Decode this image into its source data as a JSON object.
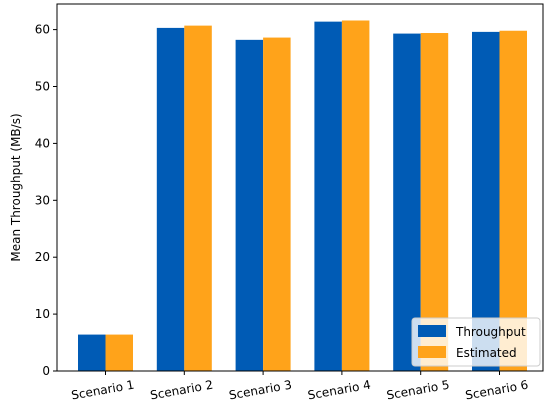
{
  "chart_data": {
    "type": "bar",
    "categories": [
      "Scenario 1",
      "Scenario 2",
      "Scenario 3",
      "Scenario 4",
      "Scenario 5",
      "Scenario 6"
    ],
    "series": [
      {
        "name": "Throughput",
        "color": "#005BB5",
        "values": [
          6.4,
          60.3,
          58.2,
          61.4,
          59.3,
          59.6
        ]
      },
      {
        "name": "Estimated",
        "color": "#FFA31A",
        "values": [
          6.4,
          60.7,
          58.6,
          61.6,
          59.4,
          59.8
        ]
      }
    ],
    "title": "",
    "xlabel": "",
    "ylabel": "Mean Throughput (MB/s)",
    "ylim": [
      0,
      64.5
    ],
    "yticks": [
      0,
      10,
      20,
      30,
      40,
      50,
      60
    ],
    "grid": false,
    "legend_position": "lower-right",
    "xtick_rotation": "slight"
  }
}
